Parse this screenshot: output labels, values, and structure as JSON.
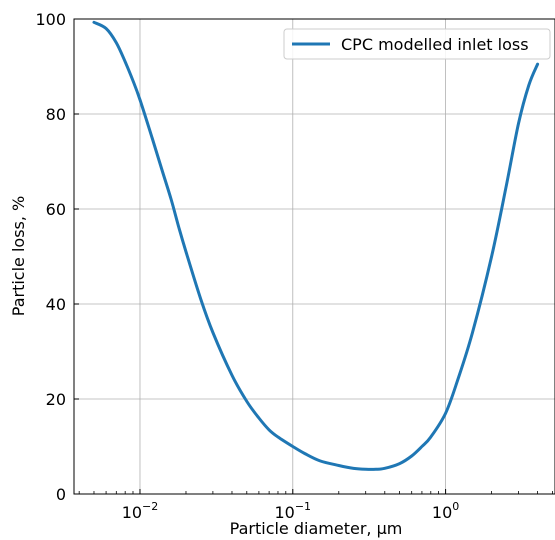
{
  "chart_data": {
    "type": "line",
    "title": "",
    "xlabel": "Particle diameter, μm",
    "ylabel": "Particle loss, %",
    "xscale": "log",
    "xlim": [
      0.0037,
      5.2
    ],
    "ylim": [
      0,
      100
    ],
    "grid": true,
    "legend_position": "top-right",
    "x_ticks": [
      {
        "value": 0.01,
        "base": "10",
        "exp": "−2"
      },
      {
        "value": 0.1,
        "base": "10",
        "exp": "−1"
      },
      {
        "value": 1,
        "base": "10",
        "exp": "0"
      }
    ],
    "y_ticks": [
      0,
      20,
      40,
      60,
      80,
      100
    ],
    "series": [
      {
        "name": "CPC modelled inlet loss",
        "color": "#1f77b4",
        "x": [
          0.005,
          0.006,
          0.007,
          0.008,
          0.009,
          0.01,
          0.012,
          0.014,
          0.016,
          0.018,
          0.02,
          0.025,
          0.03,
          0.04,
          0.05,
          0.06,
          0.07,
          0.08,
          0.1,
          0.12,
          0.15,
          0.2,
          0.25,
          0.3,
          0.35,
          0.4,
          0.5,
          0.6,
          0.7,
          0.8,
          1.0,
          1.2,
          1.5,
          2.0,
          2.5,
          3.0,
          3.5,
          4.0
        ],
        "y": [
          99.3,
          98,
          95,
          91,
          87,
          83,
          75,
          68,
          62,
          56,
          51,
          41,
          34,
          25,
          19.5,
          16,
          13.5,
          12,
          10,
          8.5,
          7,
          6,
          5.4,
          5.2,
          5.2,
          5.4,
          6.4,
          8,
          10,
          12,
          17,
          24,
          34,
          50,
          65,
          78,
          86,
          90.5
        ]
      }
    ]
  }
}
